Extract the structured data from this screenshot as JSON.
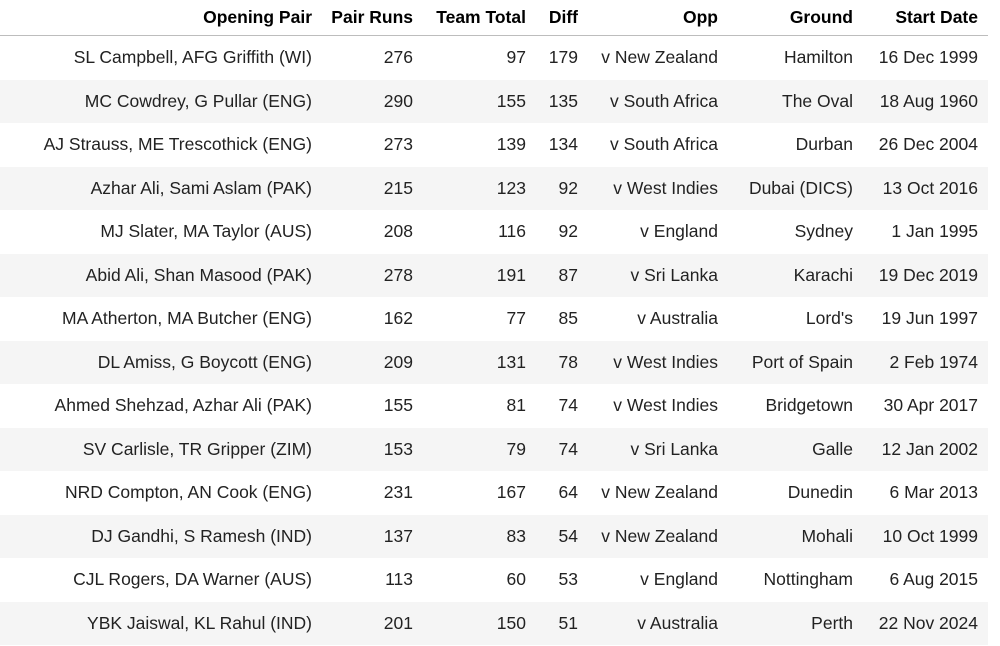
{
  "table": {
    "columns": [
      "Opening Pair",
      "Pair Runs",
      "Team Total",
      "Diff",
      "Opp",
      "Ground",
      "Start Date"
    ],
    "rows": [
      [
        "SL Campbell, AFG Griffith (WI)",
        "276",
        "97",
        "179",
        "v New Zealand",
        "Hamilton",
        "16 Dec 1999"
      ],
      [
        "MC Cowdrey, G Pullar (ENG)",
        "290",
        "155",
        "135",
        "v South Africa",
        "The Oval",
        "18 Aug 1960"
      ],
      [
        "AJ Strauss, ME Trescothick (ENG)",
        "273",
        "139",
        "134",
        "v South Africa",
        "Durban",
        "26 Dec 2004"
      ],
      [
        "Azhar Ali, Sami Aslam (PAK)",
        "215",
        "123",
        "92",
        "v West Indies",
        "Dubai (DICS)",
        "13 Oct 2016"
      ],
      [
        "MJ Slater, MA Taylor (AUS)",
        "208",
        "116",
        "92",
        "v England",
        "Sydney",
        "1 Jan 1995"
      ],
      [
        "Abid Ali, Shan Masood (PAK)",
        "278",
        "191",
        "87",
        "v Sri Lanka",
        "Karachi",
        "19 Dec 2019"
      ],
      [
        "MA Atherton, MA Butcher (ENG)",
        "162",
        "77",
        "85",
        "v Australia",
        "Lord's",
        "19 Jun 1997"
      ],
      [
        "DL Amiss, G Boycott (ENG)",
        "209",
        "131",
        "78",
        "v West Indies",
        "Port of Spain",
        "2 Feb 1974"
      ],
      [
        "Ahmed Shehzad, Azhar Ali (PAK)",
        "155",
        "81",
        "74",
        "v West Indies",
        "Bridgetown",
        "30 Apr 2017"
      ],
      [
        "SV Carlisle, TR Gripper (ZIM)",
        "153",
        "79",
        "74",
        "v Sri Lanka",
        "Galle",
        "12 Jan 2002"
      ],
      [
        "NRD Compton, AN Cook (ENG)",
        "231",
        "167",
        "64",
        "v New Zealand",
        "Dunedin",
        "6 Mar 2013"
      ],
      [
        "DJ Gandhi, S Ramesh (IND)",
        "137",
        "83",
        "54",
        "v New Zealand",
        "Mohali",
        "10 Oct 1999"
      ],
      [
        "CJL Rogers, DA Warner (AUS)",
        "113",
        "60",
        "53",
        "v England",
        "Nottingham",
        "6 Aug 2015"
      ],
      [
        "YBK Jaiswal, KL Rahul (IND)",
        "201",
        "150",
        "51",
        "v Australia",
        "Perth",
        "22 Nov 2024"
      ]
    ]
  }
}
